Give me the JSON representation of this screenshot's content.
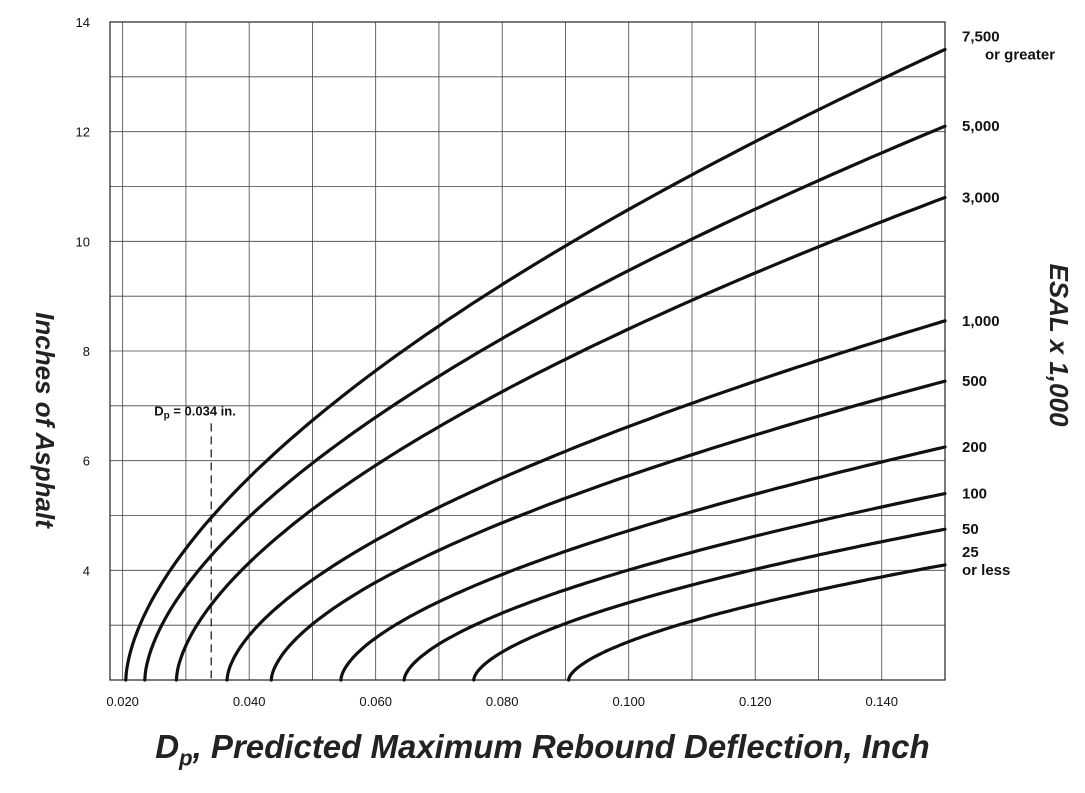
{
  "chart_data": {
    "type": "line",
    "xlabel_symbol": "D",
    "xlabel_sub": "p",
    "xlabel_rest": ", Predicted Maximum Rebound Deflection, Inch",
    "ylabel": "Inches of Asphalt",
    "ylabel2": "ESAL x 1,000",
    "xlim": [
      0.018,
      0.15
    ],
    "ylim": [
      2,
      14
    ],
    "x_ticks": [
      {
        "value": 0.02,
        "label": "0.020"
      },
      {
        "value": 0.04,
        "label": "0.040"
      },
      {
        "value": 0.06,
        "label": "0.060"
      },
      {
        "value": 0.08,
        "label": "0.080"
      },
      {
        "value": 0.1,
        "label": "0.100"
      },
      {
        "value": 0.12,
        "label": "0.120"
      },
      {
        "value": 0.14,
        "label": "0.140"
      }
    ],
    "y_ticks": [
      {
        "value": 4,
        "label": "4"
      },
      {
        "value": 6,
        "label": "6"
      },
      {
        "value": 8,
        "label": "8"
      },
      {
        "value": 10,
        "label": "10"
      },
      {
        "value": 12,
        "label": "12"
      },
      {
        "value": 14,
        "label": "14"
      }
    ],
    "grid": true,
    "series": [
      {
        "name": "7,500 or greater",
        "label_lines": [
          "7,500",
          "or greater"
        ],
        "x0": 0.0205,
        "y_end": 13.5
      },
      {
        "name": "5,000",
        "label_lines": [
          "5,000"
        ],
        "x0": 0.0235,
        "y_end": 12.1
      },
      {
        "name": "3,000",
        "label_lines": [
          "3,000"
        ],
        "x0": 0.0285,
        "y_end": 10.8
      },
      {
        "name": "1,000",
        "label_lines": [
          "1,000"
        ],
        "x0": 0.0365,
        "y_end": 8.55
      },
      {
        "name": "500",
        "label_lines": [
          "500"
        ],
        "x0": 0.0435,
        "y_end": 7.45
      },
      {
        "name": "200",
        "label_lines": [
          "200"
        ],
        "x0": 0.0545,
        "y_end": 6.25
      },
      {
        "name": "100",
        "label_lines": [
          "100"
        ],
        "x0": 0.0645,
        "y_end": 5.4
      },
      {
        "name": "50",
        "label_lines": [
          "50"
        ],
        "x0": 0.0755,
        "y_end": 4.75
      },
      {
        "name": "25 or less",
        "label_lines": [
          "25",
          "or less"
        ],
        "x0": 0.0905,
        "y_end": 4.1
      }
    ],
    "annotation": {
      "symbol": "D",
      "sub": "p",
      "text": " = 0.034 in.",
      "x": 0.034,
      "y_top": 6.9
    }
  }
}
